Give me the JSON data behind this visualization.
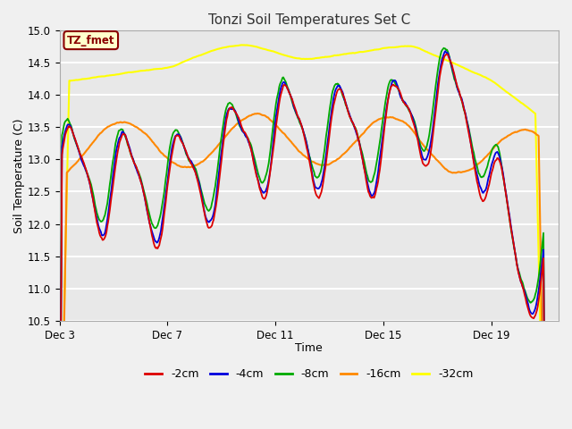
{
  "title": "Tonzi Soil Temperatures Set C",
  "xlabel": "Time",
  "ylabel": "Soil Temperature (C)",
  "ylim": [
    10.5,
    15.0
  ],
  "xlim": [
    0,
    18.5
  ],
  "xtick_positions": [
    0,
    4,
    8,
    12,
    16
  ],
  "xtick_labels": [
    "Dec 3",
    "Dec 7",
    "Dec 11",
    "Dec 15",
    "Dec 19"
  ],
  "ytick_values": [
    10.5,
    11.0,
    11.5,
    12.0,
    12.5,
    13.0,
    13.5,
    14.0,
    14.5,
    15.0
  ],
  "annotation": "TZ_fmet",
  "fig_bg_color": "#f0f0f0",
  "plot_bg_color": "#e8e8e8",
  "grid_color": "white",
  "series_colors": {
    "-2cm": "#dd0000",
    "-4cm": "#0000dd",
    "-8cm": "#00aa00",
    "-16cm": "#ff8800",
    "-32cm": "#ffff00"
  },
  "legend_labels": [
    "-2cm",
    "-4cm",
    "-8cm",
    "-16cm",
    "-32cm"
  ],
  "legend_colors": [
    "#dd0000",
    "#0000dd",
    "#00aa00",
    "#ff8800",
    "#ffff00"
  ],
  "linewidth": 1.3,
  "n_points": 600
}
